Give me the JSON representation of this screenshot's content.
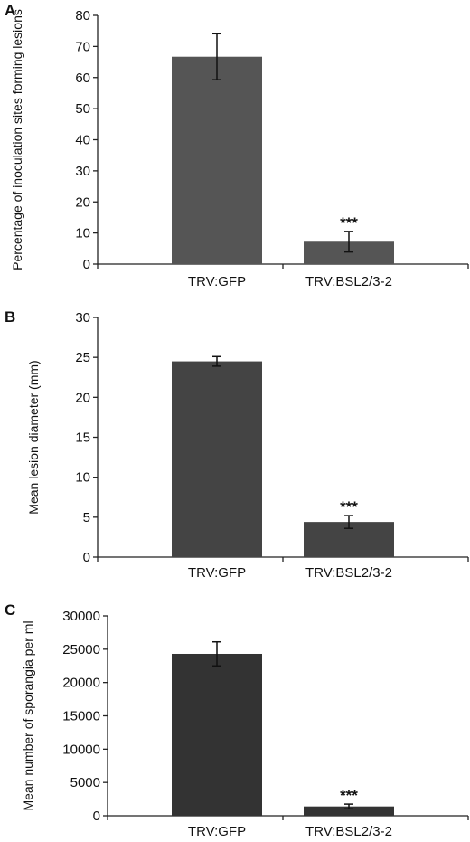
{
  "chart_data": [
    {
      "type": "bar",
      "panel": "A",
      "categories": [
        "TRV:GFP",
        "TRV:BSL2/3-2"
      ],
      "values": [
        66.7,
        7.2
      ],
      "errors": [
        7.4,
        3.3
      ],
      "significance": [
        "",
        "***"
      ],
      "xlabel": "",
      "ylabel": "Percentage of inoculation sites forming lesions",
      "ylim": [
        0,
        80
      ],
      "yticks": [
        "0",
        "10",
        "20",
        "30",
        "40",
        "50",
        "60",
        "70",
        "80"
      ],
      "bar_color": "#555555",
      "grid": false
    },
    {
      "type": "bar",
      "panel": "B",
      "categories": [
        "TRV:GFP",
        "TRV:BSL2/3-2"
      ],
      "values": [
        24.5,
        4.4
      ],
      "errors": [
        0.6,
        0.8
      ],
      "significance": [
        "",
        "***"
      ],
      "xlabel": "",
      "ylabel": "Mean lesion diameter (mm)",
      "ylim": [
        0,
        30
      ],
      "yticks": [
        "0",
        "5",
        "10",
        "15",
        "20",
        "25",
        "30"
      ],
      "bar_color": "#444444",
      "grid": false
    },
    {
      "type": "bar",
      "panel": "C",
      "categories": [
        "TRV:GFP",
        "TRV:BSL2/3-2"
      ],
      "values": [
        24300,
        1400
      ],
      "errors": [
        1800,
        350
      ],
      "significance": [
        "",
        "***"
      ],
      "xlabel": "",
      "ylabel": "Mean number of sporangia per ml",
      "ylim": [
        0,
        30000
      ],
      "yticks": [
        "0",
        "5000",
        "10000",
        "15000",
        "20000",
        "25000",
        "30000"
      ],
      "bar_color": "#333333",
      "grid": false
    }
  ]
}
